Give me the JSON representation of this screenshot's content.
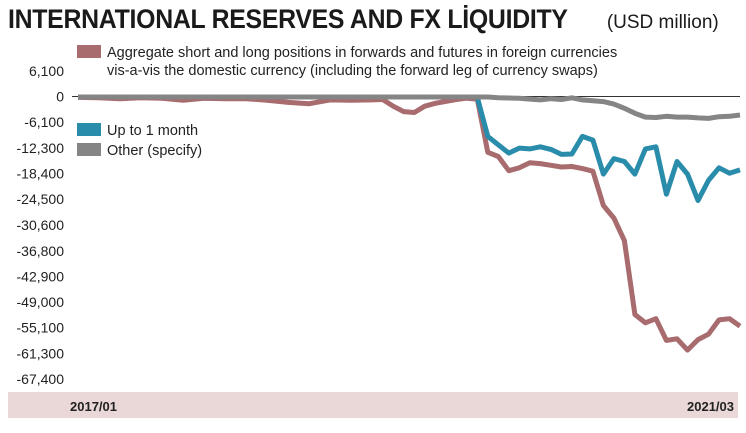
{
  "header": {
    "title": "INTERNATIONAL RESERVES AND FX LİQUIDITY",
    "unit": "(USD million)"
  },
  "colors": {
    "aggregate": "#a86b6e",
    "up_to_1_month": "#2a8cab",
    "other": "#858585",
    "xaxis_band": "#ead8d8",
    "zero_line": "#333333"
  },
  "chart_data": {
    "type": "line",
    "ylim": [
      -70000,
      8000
    ],
    "y_ticks": [
      6100,
      0,
      -6100,
      -12300,
      -18400,
      -24500,
      -30600,
      -36800,
      -42900,
      -49000,
      -55100,
      -61300,
      -67400
    ],
    "y_tick_labels": [
      "6,100",
      "0",
      "-6,100",
      "-12,300",
      "-18,400",
      "-24,500",
      "-30,600",
      "-36,800",
      "-42,900",
      "-49,000",
      "-55,100",
      "-61,300",
      "-67,400"
    ],
    "x_tick_labels": [
      "2017/01",
      "2021/03"
    ],
    "x_range": [
      "2017/01",
      "2021/03"
    ],
    "legend_position": "top-left",
    "series": [
      {
        "name": "Aggregate short and long positions in forwards and futures in foreign currencies vis-a-vis the domestic currency (including the forward leg of currency swaps)",
        "name_lines": [
          "Aggregate short and long positions in forwards and futures in foreign currencies",
          "vis-a-vis the domestic currency (including the forward leg of currency swaps)"
        ],
        "color_key": "aggregate",
        "points": [
          [
            0,
            -200
          ],
          [
            2,
            -300
          ],
          [
            4,
            -500
          ],
          [
            6,
            -300
          ],
          [
            8,
            -400
          ],
          [
            10,
            -900
          ],
          [
            12,
            -400
          ],
          [
            14,
            -500
          ],
          [
            16,
            -500
          ],
          [
            18,
            -900
          ],
          [
            20,
            -1400
          ],
          [
            22,
            -1700
          ],
          [
            24,
            -800
          ],
          [
            26,
            -900
          ],
          [
            28,
            -800
          ],
          [
            29,
            -700
          ],
          [
            30,
            -2300
          ],
          [
            31,
            -3600
          ],
          [
            32,
            -3800
          ],
          [
            33,
            -2300
          ],
          [
            34,
            -1600
          ],
          [
            36,
            -700
          ],
          [
            37,
            -400
          ],
          [
            38,
            -600
          ],
          [
            39,
            -13300
          ],
          [
            40,
            -14300
          ],
          [
            41,
            -17700
          ],
          [
            42,
            -17000
          ],
          [
            43,
            -15800
          ],
          [
            44,
            -16000
          ],
          [
            45,
            -16400
          ],
          [
            46,
            -16800
          ],
          [
            47,
            -16700
          ],
          [
            48,
            -17200
          ],
          [
            49,
            -17800
          ],
          [
            50,
            -26000
          ],
          [
            51,
            -29000
          ],
          [
            52,
            -34400
          ],
          [
            53,
            -52000
          ],
          [
            54,
            -54000
          ],
          [
            55,
            -53000
          ],
          [
            56,
            -58200
          ],
          [
            57,
            -57800
          ],
          [
            58,
            -60500
          ],
          [
            59,
            -58000
          ],
          [
            60,
            -56700
          ],
          [
            61,
            -53300
          ],
          [
            62,
            -53000
          ],
          [
            63,
            -54800
          ]
        ]
      },
      {
        "name": "Up to 1 month",
        "color_key": "up_to_1_month",
        "points": [
          [
            38,
            -200
          ],
          [
            39,
            -9500
          ],
          [
            40,
            -11500
          ],
          [
            41,
            -13500
          ],
          [
            42,
            -12300
          ],
          [
            43,
            -12500
          ],
          [
            44,
            -12000
          ],
          [
            45,
            -12600
          ],
          [
            46,
            -13800
          ],
          [
            47,
            -13700
          ],
          [
            48,
            -9500
          ],
          [
            49,
            -10400
          ],
          [
            50,
            -18500
          ],
          [
            51,
            -14800
          ],
          [
            52,
            -15500
          ],
          [
            53,
            -18500
          ],
          [
            54,
            -12500
          ],
          [
            55,
            -12000
          ],
          [
            56,
            -23300
          ],
          [
            57,
            -15500
          ],
          [
            58,
            -18500
          ],
          [
            59,
            -24800
          ],
          [
            60,
            -20000
          ],
          [
            61,
            -17000
          ],
          [
            62,
            -18300
          ],
          [
            63,
            -17500
          ]
        ]
      },
      {
        "name": "Other (specify)",
        "color_key": "other",
        "points": [
          [
            0,
            -100
          ],
          [
            10,
            -100
          ],
          [
            20,
            -100
          ],
          [
            30,
            -100
          ],
          [
            38,
            -100
          ],
          [
            39,
            -100
          ],
          [
            40,
            -300
          ],
          [
            42,
            -400
          ],
          [
            43,
            -600
          ],
          [
            44,
            -800
          ],
          [
            45,
            -500
          ],
          [
            46,
            -700
          ],
          [
            47,
            -300
          ],
          [
            48,
            -800
          ],
          [
            49,
            -1000
          ],
          [
            50,
            -1200
          ],
          [
            51,
            -1800
          ],
          [
            52,
            -2800
          ],
          [
            53,
            -4000
          ],
          [
            54,
            -4900
          ],
          [
            55,
            -5000
          ],
          [
            56,
            -4700
          ],
          [
            57,
            -4900
          ],
          [
            58,
            -4900
          ],
          [
            59,
            -5100
          ],
          [
            60,
            -5200
          ],
          [
            61,
            -4800
          ],
          [
            62,
            -4700
          ],
          [
            63,
            -4400
          ]
        ]
      }
    ]
  }
}
